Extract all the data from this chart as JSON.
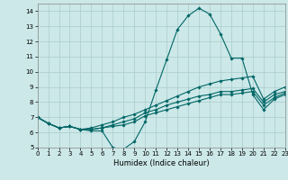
{
  "bg_color": "#cce8e8",
  "grid_color": "#aacccc",
  "line_color": "#006666",
  "xlabel": "Humidex (Indice chaleur)",
  "xlim": [
    0,
    23
  ],
  "ylim": [
    5,
    14.5
  ],
  "xticks": [
    0,
    1,
    2,
    3,
    4,
    5,
    6,
    7,
    8,
    9,
    10,
    11,
    12,
    13,
    14,
    15,
    16,
    17,
    18,
    19,
    20,
    21,
    22,
    23
  ],
  "yticks": [
    5,
    6,
    7,
    8,
    9,
    10,
    11,
    12,
    13,
    14
  ],
  "series": [
    {
      "x": [
        0,
        1,
        2,
        3,
        4,
        5,
        6,
        7,
        8,
        9,
        10,
        11,
        12,
        13,
        14,
        15,
        16,
        17,
        18,
        19,
        20,
        21,
        22,
        23
      ],
      "y": [
        7.0,
        6.6,
        6.3,
        6.4,
        6.2,
        6.1,
        6.1,
        5.0,
        4.9,
        5.4,
        6.7,
        8.8,
        10.8,
        12.8,
        13.7,
        14.2,
        13.8,
        12.5,
        10.9,
        10.9,
        8.5,
        7.5,
        8.2,
        8.5
      ]
    },
    {
      "x": [
        0,
        1,
        2,
        3,
        4,
        5,
        6,
        7,
        8,
        9,
        10,
        11,
        12,
        13,
        14,
        15,
        16,
        17,
        18,
        19,
        20,
        21,
        22,
        23
      ],
      "y": [
        7.0,
        6.6,
        6.3,
        6.4,
        6.2,
        6.2,
        6.3,
        6.4,
        6.5,
        6.7,
        7.1,
        7.3,
        7.5,
        7.7,
        7.9,
        8.1,
        8.3,
        8.5,
        8.5,
        8.6,
        8.7,
        7.8,
        8.3,
        8.6
      ]
    },
    {
      "x": [
        0,
        1,
        2,
        3,
        4,
        5,
        6,
        7,
        8,
        9,
        10,
        11,
        12,
        13,
        14,
        15,
        16,
        17,
        18,
        19,
        20,
        21,
        22,
        23
      ],
      "y": [
        7.0,
        6.6,
        6.3,
        6.4,
        6.2,
        6.2,
        6.3,
        6.5,
        6.7,
        6.9,
        7.3,
        7.5,
        7.8,
        8.0,
        8.2,
        8.4,
        8.5,
        8.7,
        8.7,
        8.8,
        8.9,
        8.0,
        8.5,
        8.7
      ]
    },
    {
      "x": [
        0,
        1,
        2,
        3,
        4,
        5,
        6,
        7,
        8,
        9,
        10,
        11,
        12,
        13,
        14,
        15,
        16,
        17,
        18,
        19,
        20,
        21,
        22,
        23
      ],
      "y": [
        7.0,
        6.6,
        6.3,
        6.4,
        6.2,
        6.3,
        6.5,
        6.7,
        7.0,
        7.2,
        7.5,
        7.8,
        8.1,
        8.4,
        8.7,
        9.0,
        9.2,
        9.4,
        9.5,
        9.6,
        9.7,
        8.2,
        8.7,
        9.0
      ]
    }
  ]
}
